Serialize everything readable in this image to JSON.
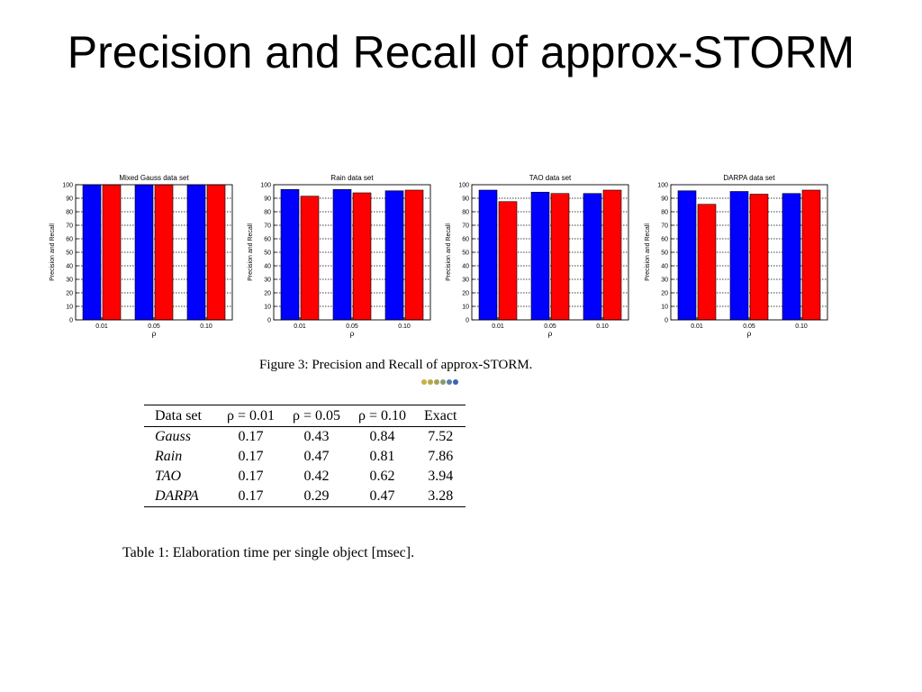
{
  "title": "Precision and Recall of approx-STORM",
  "chart_data": [
    {
      "type": "bar",
      "title": "Mixed Gauss data set",
      "xlabel": "ρ",
      "ylabel": "Precision and Recall",
      "categories": [
        "0.01",
        "0.05",
        "0.10"
      ],
      "series": [
        {
          "color": "#0000ff",
          "values": [
            100,
            100,
            100
          ]
        },
        {
          "color": "#ff0000",
          "values": [
            100,
            100,
            100
          ]
        }
      ],
      "ylim": [
        0,
        100
      ],
      "yticks": [
        0,
        10,
        20,
        30,
        40,
        50,
        60,
        70,
        80,
        90,
        100
      ],
      "grid": true
    },
    {
      "type": "bar",
      "title": "Rain data set",
      "xlabel": "ρ",
      "ylabel": "Precision and Recall",
      "categories": [
        "0.01",
        "0.05",
        "0.10"
      ],
      "series": [
        {
          "color": "#0000ff",
          "values": [
            96.5,
            96.5,
            95.5
          ]
        },
        {
          "color": "#ff0000",
          "values": [
            91.5,
            94,
            96
          ]
        }
      ],
      "ylim": [
        0,
        100
      ],
      "yticks": [
        0,
        10,
        20,
        30,
        40,
        50,
        60,
        70,
        80,
        90,
        100
      ],
      "grid": true
    },
    {
      "type": "bar",
      "title": "TAO data set",
      "xlabel": "ρ",
      "ylabel": "Precision and Recall",
      "categories": [
        "0.01",
        "0.05",
        "0.10"
      ],
      "series": [
        {
          "color": "#0000ff",
          "values": [
            96,
            94.5,
            93.5
          ]
        },
        {
          "color": "#ff0000",
          "values": [
            87.5,
            93.5,
            96
          ]
        }
      ],
      "ylim": [
        0,
        100
      ],
      "yticks": [
        0,
        10,
        20,
        30,
        40,
        50,
        60,
        70,
        80,
        90,
        100
      ],
      "grid": true
    },
    {
      "type": "bar",
      "title": "DARPA data set",
      "xlabel": "ρ",
      "ylabel": "Precision and Recall",
      "categories": [
        "0.01",
        "0.05",
        "0.10"
      ],
      "series": [
        {
          "color": "#0000ff",
          "values": [
            95.5,
            95,
            93.5
          ]
        },
        {
          "color": "#ff0000",
          "values": [
            85.5,
            93,
            96
          ]
        }
      ],
      "ylim": [
        0,
        100
      ],
      "yticks": [
        0,
        10,
        20,
        30,
        40,
        50,
        60,
        70,
        80,
        90,
        100
      ],
      "grid": true
    }
  ],
  "figure_caption": "Figure 3: Precision and Recall of approx-STORM.",
  "caption_dot_colors": [
    "#c8b04a",
    "#b8a848",
    "#a8a058",
    "#8a9a6a",
    "#5a7ca8",
    "#3a64b0"
  ],
  "table": {
    "headers": [
      "Data set",
      "ρ = 0.01",
      "ρ = 0.05",
      "ρ = 0.10",
      "Exact"
    ],
    "rows": [
      [
        "Gauss",
        "0.17",
        "0.43",
        "0.84",
        "7.52"
      ],
      [
        "Rain",
        "0.17",
        "0.47",
        "0.81",
        "7.86"
      ],
      [
        "TAO",
        "0.17",
        "0.42",
        "0.62",
        "3.94"
      ],
      [
        "DARPA",
        "0.17",
        "0.29",
        "0.47",
        "3.28"
      ]
    ]
  },
  "table_caption": "Table 1: Elaboration time per single object [msec]."
}
